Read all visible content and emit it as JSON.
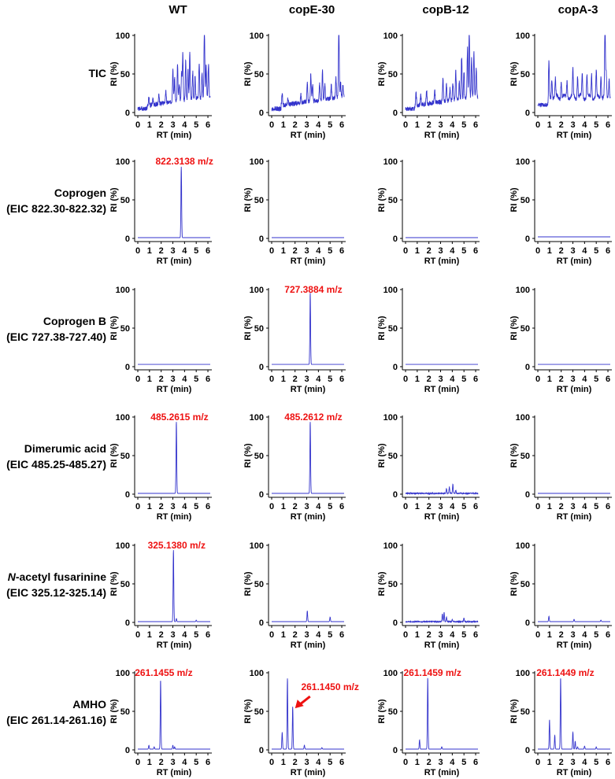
{
  "columns": [
    "WT",
    "copE-30",
    "copB-12",
    "copA-3"
  ],
  "rows": [
    {
      "label": "TIC",
      "sublabel": ""
    },
    {
      "label": "Coprogen",
      "sublabel": "(EIC 822.30-822.32)"
    },
    {
      "label": "Coprogen B",
      "sublabel": "(EIC 727.38-727.40)"
    },
    {
      "label": "Dimerumic acid",
      "sublabel": "(EIC 485.25-485.27)"
    },
    {
      "label_italic": "N",
      "label": "-acetyl fusarinine",
      "sublabel": "(EIC 325.12-325.14)"
    },
    {
      "label": "AMHO",
      "sublabel": "(EIC 261.14-261.16)"
    }
  ],
  "colors": {
    "trace": "#3333cc",
    "annotation": "#ee1111",
    "axis": "#000000"
  },
  "chart_data": {
    "type": "line",
    "xlabel": "RT (min)",
    "ylabel": "RI  (%)",
    "xlim": [
      0,
      6.2
    ],
    "ylim": [
      0,
      100
    ],
    "xticks": [
      0,
      1,
      2,
      3,
      4,
      5,
      6
    ],
    "yticks": [
      0,
      50,
      100
    ],
    "panels": [
      {
        "row": 0,
        "col": 0,
        "baseline": 5,
        "noise": "tic",
        "peaks": [
          [
            0.95,
            10
          ],
          [
            1.3,
            8
          ],
          [
            1.8,
            12
          ],
          [
            2.4,
            16
          ],
          [
            3.0,
            42
          ],
          [
            3.15,
            30
          ],
          [
            3.4,
            48
          ],
          [
            3.55,
            22
          ],
          [
            3.75,
            38
          ],
          [
            3.85,
            60
          ],
          [
            4.1,
            52
          ],
          [
            4.3,
            38
          ],
          [
            4.45,
            62
          ],
          [
            4.7,
            35
          ],
          [
            4.9,
            28
          ],
          [
            5.25,
            45
          ],
          [
            5.5,
            32
          ],
          [
            5.7,
            92
          ],
          [
            5.85,
            40
          ],
          [
            6.05,
            42
          ]
        ]
      },
      {
        "row": 0,
        "col": 1,
        "baseline": 5,
        "noise": "tic",
        "peaks": [
          [
            0.9,
            15
          ],
          [
            1.4,
            9
          ],
          [
            2.5,
            10
          ],
          [
            3.05,
            25
          ],
          [
            3.35,
            35
          ],
          [
            3.5,
            22
          ],
          [
            4.1,
            20
          ],
          [
            4.35,
            38
          ],
          [
            4.55,
            20
          ],
          [
            5.1,
            18
          ],
          [
            5.5,
            25
          ],
          [
            5.75,
            92
          ],
          [
            5.9,
            18
          ],
          [
            6.1,
            15
          ]
        ]
      },
      {
        "row": 0,
        "col": 2,
        "baseline": 5,
        "noise": "tic",
        "peaks": [
          [
            0.9,
            16
          ],
          [
            1.3,
            12
          ],
          [
            1.8,
            18
          ],
          [
            2.5,
            15
          ],
          [
            3.2,
            30
          ],
          [
            3.5,
            22
          ],
          [
            3.8,
            15
          ],
          [
            4.05,
            22
          ],
          [
            4.3,
            38
          ],
          [
            4.6,
            22
          ],
          [
            4.8,
            55
          ],
          [
            5.0,
            35
          ],
          [
            5.3,
            65
          ],
          [
            5.45,
            92
          ],
          [
            5.65,
            50
          ],
          [
            5.85,
            60
          ],
          [
            6.05,
            38
          ]
        ]
      },
      {
        "row": 0,
        "col": 3,
        "baseline": 10,
        "noise": "ticA",
        "peaks": [
          [
            0.95,
            45
          ],
          [
            1.2,
            25
          ],
          [
            1.5,
            22
          ],
          [
            2.0,
            22
          ],
          [
            2.5,
            22
          ],
          [
            3.0,
            35
          ],
          [
            3.4,
            28
          ],
          [
            3.8,
            30
          ],
          [
            4.2,
            28
          ],
          [
            4.6,
            32
          ],
          [
            5.0,
            32
          ],
          [
            5.4,
            30
          ],
          [
            5.75,
            92
          ],
          [
            5.85,
            30
          ],
          [
            6.1,
            25
          ]
        ]
      },
      {
        "row": 1,
        "col": 0,
        "baseline": 1,
        "noise": "flat",
        "peaks": [
          [
            3.72,
            92
          ]
        ]
      },
      {
        "row": 1,
        "col": 1,
        "baseline": 1,
        "noise": "flat",
        "peaks": []
      },
      {
        "row": 1,
        "col": 2,
        "baseline": 1,
        "noise": "flat",
        "peaks": []
      },
      {
        "row": 1,
        "col": 3,
        "baseline": 2,
        "noise": "flat",
        "peaks": []
      },
      {
        "row": 2,
        "col": 0,
        "baseline": 3,
        "noise": "flat",
        "peaks": []
      },
      {
        "row": 2,
        "col": 1,
        "baseline": 3,
        "noise": "flat",
        "peaks": [
          [
            3.3,
            93
          ]
        ]
      },
      {
        "row": 2,
        "col": 2,
        "baseline": 3,
        "noise": "flat",
        "peaks": []
      },
      {
        "row": 2,
        "col": 3,
        "baseline": 3,
        "noise": "flat",
        "peaks": []
      },
      {
        "row": 3,
        "col": 0,
        "baseline": 1,
        "noise": "flat",
        "peaks": [
          [
            3.3,
            93
          ]
        ]
      },
      {
        "row": 3,
        "col": 1,
        "baseline": 1,
        "noise": "flat",
        "peaks": [
          [
            3.3,
            93
          ]
        ]
      },
      {
        "row": 3,
        "col": 2,
        "baseline": 1,
        "noise": "low",
        "peaks": [
          [
            3.5,
            6
          ],
          [
            3.75,
            8
          ],
          [
            4.05,
            12
          ],
          [
            4.3,
            4
          ]
        ]
      },
      {
        "row": 3,
        "col": 3,
        "baseline": 1,
        "noise": "flat",
        "peaks": []
      },
      {
        "row": 4,
        "col": 0,
        "baseline": 1,
        "noise": "flat",
        "peaks": [
          [
            3.05,
            93
          ],
          [
            3.3,
            4
          ],
          [
            5.0,
            2
          ]
        ]
      },
      {
        "row": 4,
        "col": 1,
        "baseline": 1,
        "noise": "flat",
        "peaks": [
          [
            3.05,
            14
          ],
          [
            5.0,
            6
          ]
        ]
      },
      {
        "row": 4,
        "col": 2,
        "baseline": 1,
        "noise": "low",
        "peaks": [
          [
            3.15,
            10
          ],
          [
            3.3,
            12
          ],
          [
            3.5,
            6
          ],
          [
            4.0,
            3
          ],
          [
            5.0,
            5
          ]
        ]
      },
      {
        "row": 4,
        "col": 3,
        "baseline": 1,
        "noise": "flat",
        "peaks": [
          [
            0.95,
            7
          ],
          [
            3.1,
            3
          ],
          [
            5.4,
            2
          ]
        ]
      },
      {
        "row": 5,
        "col": 0,
        "baseline": 1,
        "noise": "flat",
        "peaks": [
          [
            0.95,
            5
          ],
          [
            1.4,
            3
          ],
          [
            1.95,
            90
          ],
          [
            3.0,
            5
          ],
          [
            3.15,
            3
          ]
        ]
      },
      {
        "row": 5,
        "col": 1,
        "baseline": 1,
        "noise": "flat",
        "peaks": [
          [
            0.9,
            22
          ],
          [
            1.35,
            92
          ],
          [
            1.8,
            55
          ],
          [
            2.8,
            5
          ],
          [
            4.3,
            2
          ]
        ]
      },
      {
        "row": 5,
        "col": 2,
        "baseline": 1,
        "noise": "flat",
        "peaks": [
          [
            1.2,
            12
          ],
          [
            1.9,
            93
          ],
          [
            3.1,
            3
          ]
        ]
      },
      {
        "row": 5,
        "col": 3,
        "baseline": 1,
        "noise": "flat",
        "peaks": [
          [
            1.0,
            38
          ],
          [
            1.45,
            18
          ],
          [
            1.95,
            93
          ],
          [
            3.0,
            22
          ],
          [
            3.2,
            10
          ],
          [
            3.4,
            3
          ],
          [
            4.0,
            4
          ],
          [
            5.0,
            3
          ]
        ]
      }
    ],
    "annotations": [
      {
        "row": 1,
        "col": 0,
        "text": "822.3138 m/z"
      },
      {
        "row": 2,
        "col": 1,
        "text": "727.3884 m/z"
      },
      {
        "row": 3,
        "col": 0,
        "text": "485.2615 m/z"
      },
      {
        "row": 3,
        "col": 1,
        "text": "485.2612 m/z"
      },
      {
        "row": 4,
        "col": 0,
        "text": "325.1380 m/z"
      },
      {
        "row": 5,
        "col": 0,
        "text": "261.1455 m/z"
      },
      {
        "row": 5,
        "col": 1,
        "text": "261.1450 m/z",
        "arrow": true
      },
      {
        "row": 5,
        "col": 2,
        "text": "261.1459 m/z"
      },
      {
        "row": 5,
        "col": 3,
        "text": "261.1449 m/z"
      }
    ]
  }
}
